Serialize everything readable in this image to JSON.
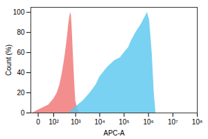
{
  "chart_data": {
    "type": "area",
    "log": "x",
    "xlabel": "APC-A",
    "ylabel": "Count (%)",
    "xlim": [
      -30,
      100000000
    ],
    "xticks": [
      0,
      {
        "value": 100,
        "label": "10²"
      },
      {
        "value": 1000,
        "label": "10³"
      },
      {
        "value": 10000,
        "label": "10⁴"
      },
      {
        "value": 100000,
        "label": "10⁵"
      },
      {
        "value": 1000000,
        "label": "10⁶"
      },
      {
        "value": 10000000,
        "label": "10⁷"
      },
      {
        "value": 100000000,
        "label": "10⁸"
      }
    ],
    "ylim": [
      0,
      105
    ],
    "yticks": [
      0,
      20,
      40,
      60,
      80,
      100
    ],
    "series": [
      {
        "color": "#f07575",
        "x": [
          -20,
          0,
          50,
          100,
          150,
          200,
          250,
          300,
          350,
          400,
          450,
          500,
          550,
          600,
          650,
          700,
          800,
          900,
          1000,
          1200,
          1500
        ],
        "values": [
          0,
          3,
          8,
          14,
          20,
          28,
          38,
          48,
          58,
          68,
          78,
          88,
          95,
          100,
          97,
          85,
          55,
          30,
          12,
          4,
          0
        ]
      },
      {
        "color": "#5cc8ee",
        "x": [
          500,
          700,
          1000,
          2000,
          4000,
          7000,
          10000,
          20000,
          40000,
          70000,
          100000,
          150000,
          200000,
          300000,
          500000,
          700000,
          900000,
          1100000,
          1400000,
          1700000,
          2000000
        ],
        "values": [
          0,
          3,
          6,
          12,
          20,
          28,
          36,
          45,
          52,
          55,
          60,
          65,
          72,
          80,
          88,
          95,
          100,
          92,
          60,
          20,
          0
        ]
      }
    ]
  }
}
